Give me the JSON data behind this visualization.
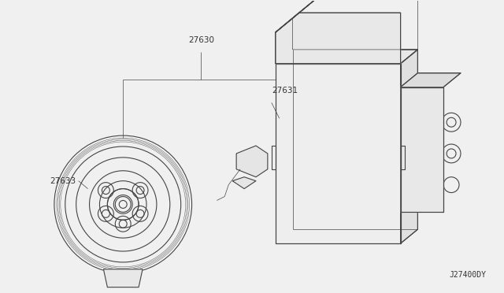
{
  "bg_color": "#f0f0f0",
  "line_color": "#444444",
  "label_color": "#333333",
  "diagram_code": "J27400DY",
  "label_fontsize": 7.5,
  "code_fontsize": 7.0
}
